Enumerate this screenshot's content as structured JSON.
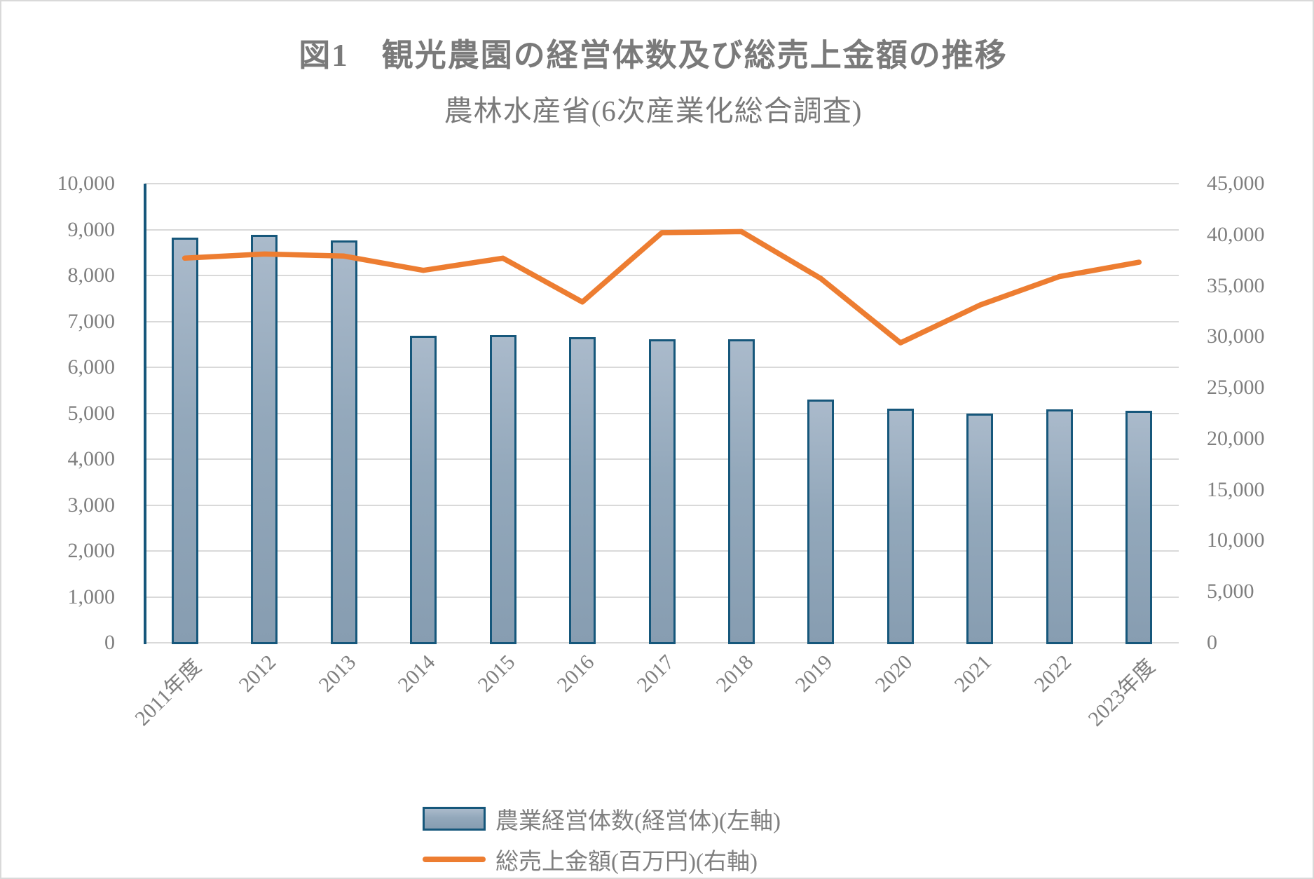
{
  "title": "図1　観光農園の経営体数及び総売上金額の推移",
  "subtitle": "農林水産省(6次産業化総合調査)",
  "chart_data": {
    "type": "bar+line combo",
    "categories": [
      "2011年度",
      "2012",
      "2013",
      "2014",
      "2015",
      "2016",
      "2017",
      "2018",
      "2019",
      "2020",
      "2021",
      "2022",
      "2023年度"
    ],
    "series": [
      {
        "name": "農業経営体数(経営体)(左軸)",
        "type": "bar",
        "axis": "left",
        "values": [
          8830,
          8880,
          8770,
          6680,
          6700,
          6650,
          6610,
          6610,
          5300,
          5100,
          5000,
          5090,
          5050
        ]
      },
      {
        "name": "総売上金額(百万円)(右軸)",
        "type": "line",
        "axis": "right",
        "values": [
          37700,
          38100,
          37900,
          36500,
          37700,
          33400,
          40200,
          40300,
          35700,
          29400,
          33100,
          35900,
          37300
        ]
      }
    ],
    "left_axis": {
      "min": 0,
      "max": 10000,
      "step": 1000,
      "ticks": [
        "10,000",
        "9,000",
        "8,000",
        "7,000",
        "6,000",
        "5,000",
        "4,000",
        "3,000",
        "2,000",
        "1,000",
        "0"
      ]
    },
    "right_axis": {
      "min": 0,
      "max": 45000,
      "step": 5000,
      "ticks": [
        "45,000",
        "40,000",
        "35,000",
        "30,000",
        "25,000",
        "20,000",
        "15,000",
        "10,000",
        "5,000",
        "0"
      ]
    },
    "grid": true,
    "legend_position": "bottom",
    "x_tick_rotation_deg": 45
  },
  "colors": {
    "bar_fill_top": "#aabacb",
    "bar_fill_bottom": "#879db1",
    "bar_border": "#16577b",
    "line": "#ed7d31",
    "gridline": "#d9d9d9",
    "axis_line": "#16577b",
    "tick_text": "#7f7f7f",
    "title_text": "#7a7a7a"
  }
}
